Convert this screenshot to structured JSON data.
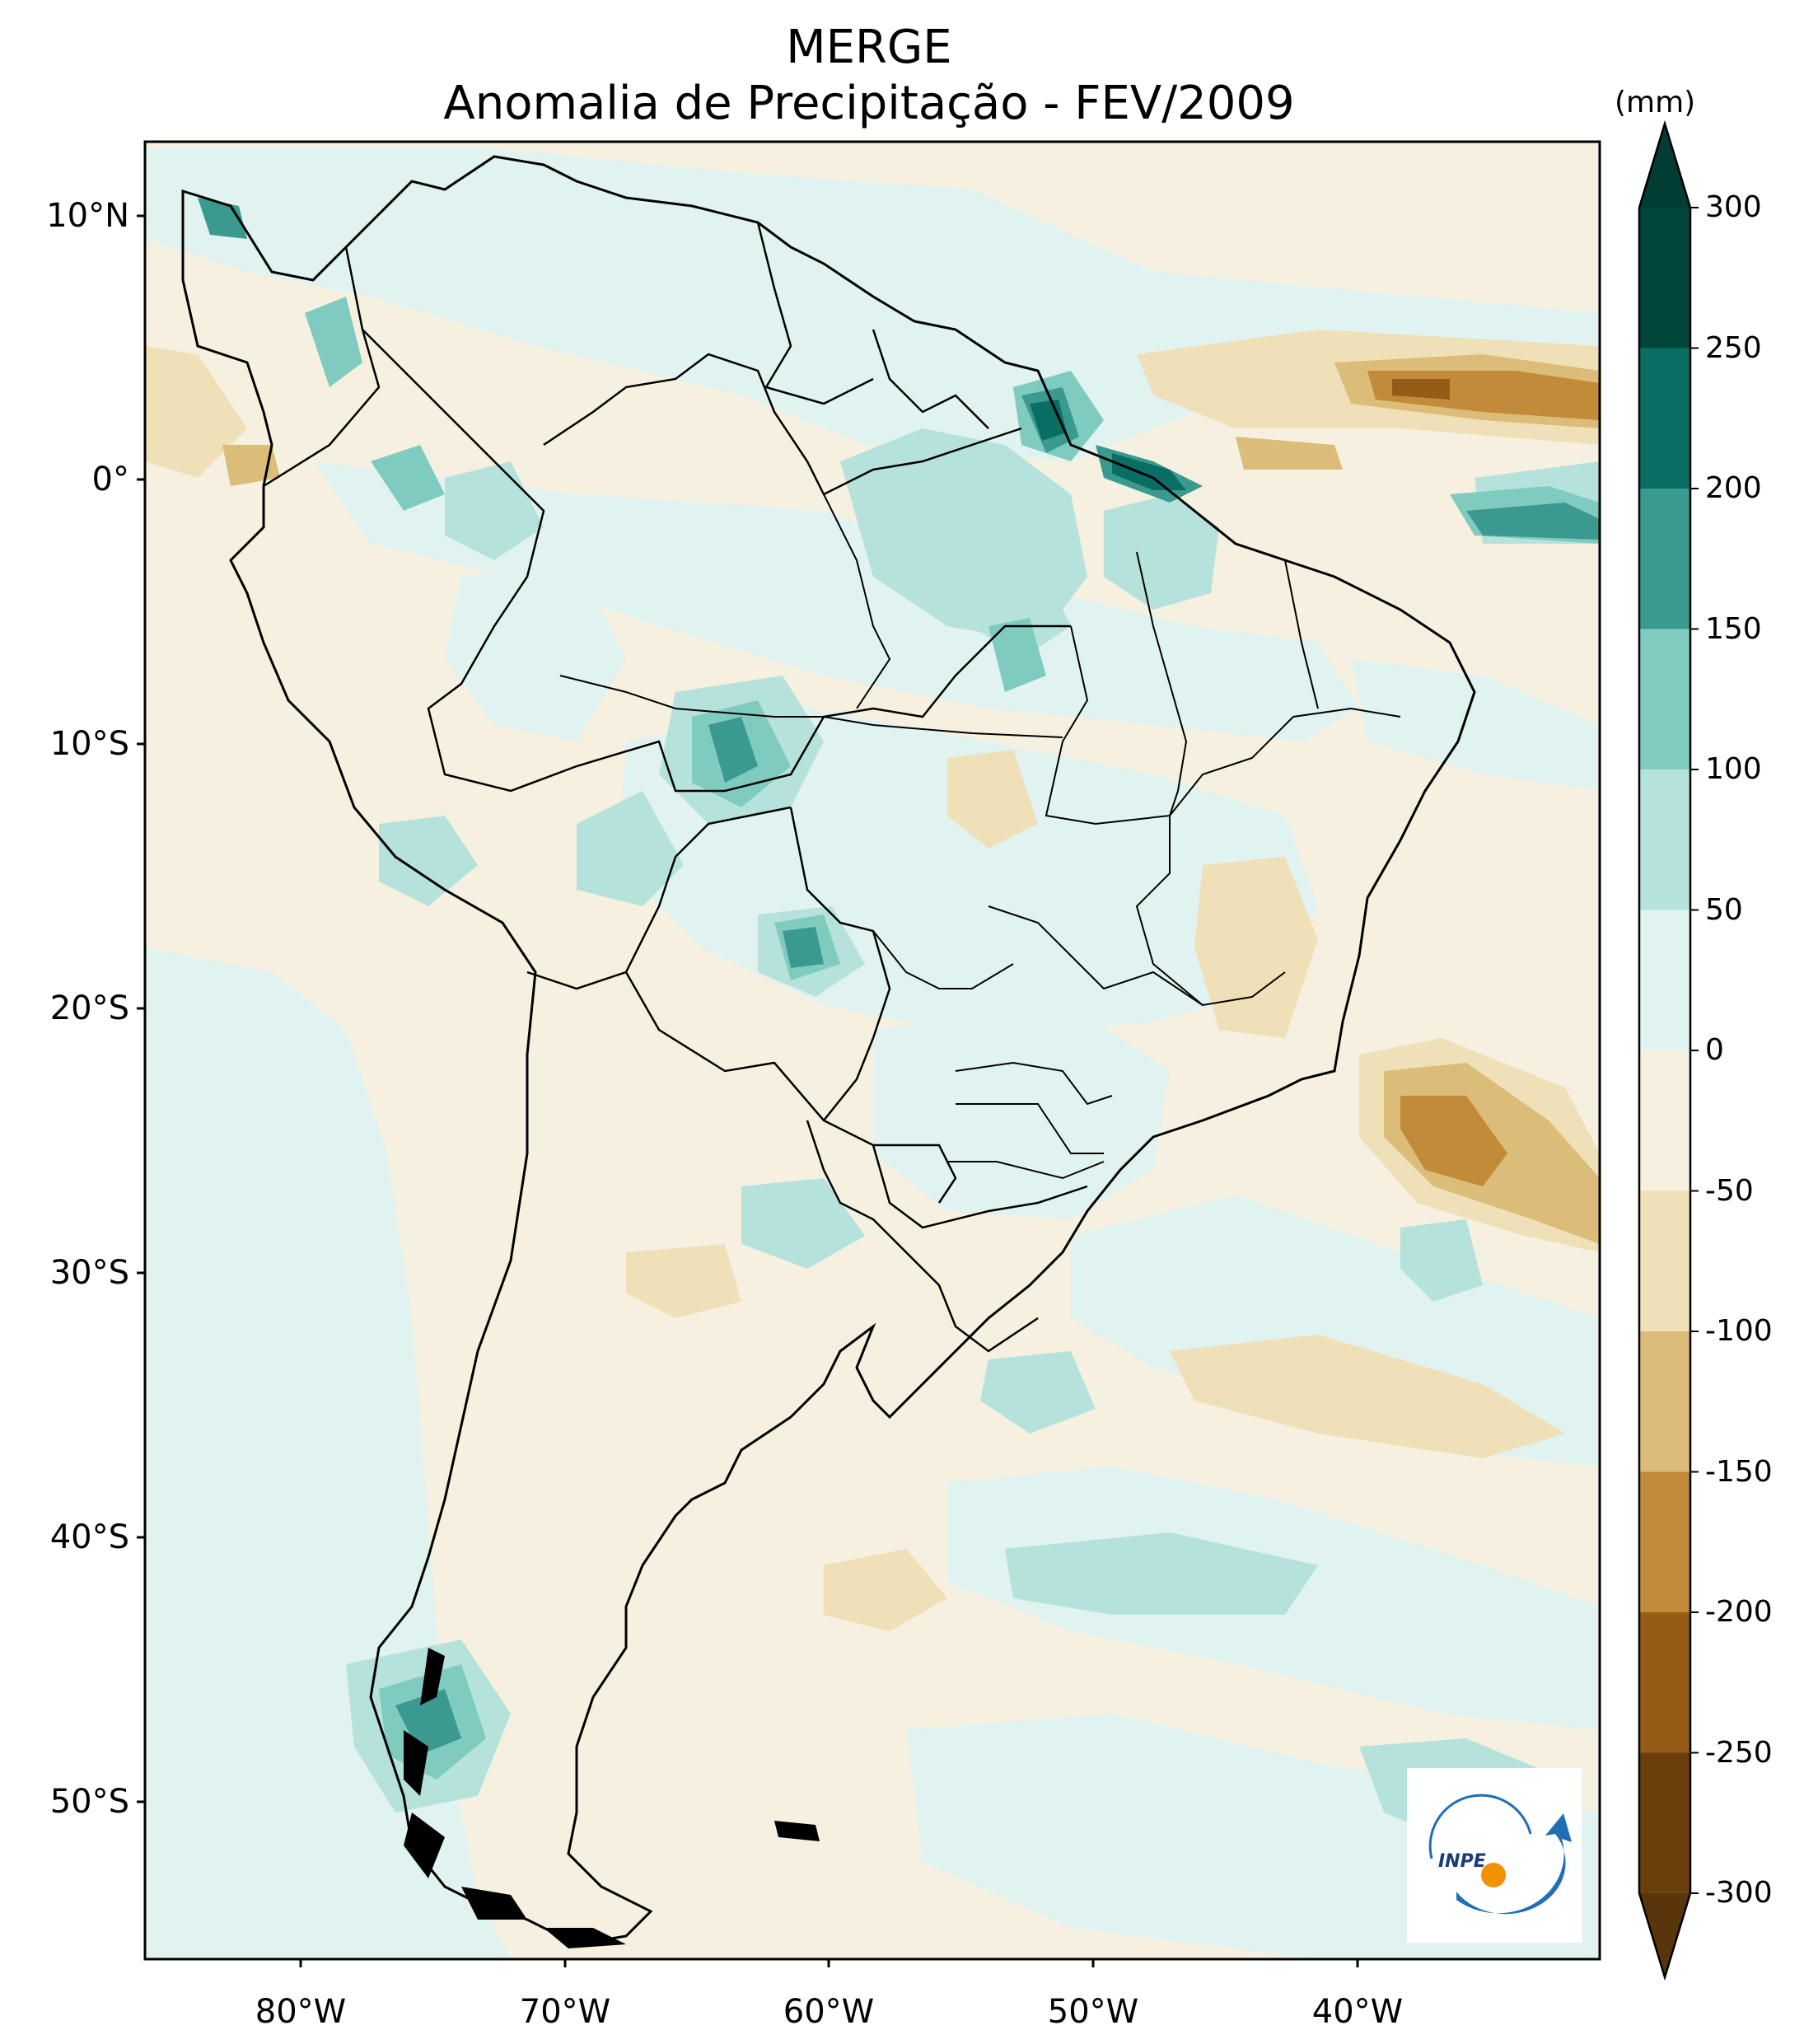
{
  "title": "MERGE",
  "subtitle": "Anomalia de Precipitação - FEV/2009",
  "colorbar": {
    "unit": "(mm)",
    "ticks": [
      "300",
      "250",
      "200",
      "150",
      "100",
      "50",
      "0",
      "-50",
      "-100",
      "-150",
      "-200",
      "-250",
      "-300"
    ],
    "colors": [
      "#01463b",
      "#0b6e65",
      "#3b9a8f",
      "#80cbc0",
      "#b6e2dc",
      "#e1f3f0",
      "#f6f0e1",
      "#f0e0b8",
      "#dcbc79",
      "#c18b3a",
      "#955c18",
      "#6a3f0c"
    ],
    "extend_colors": {
      "top": "#013d34",
      "bottom": "#5a340a"
    }
  },
  "axes": {
    "lat_labels": [
      "10°N",
      "0°",
      "10°S",
      "20°S",
      "30°S",
      "40°S",
      "50°S"
    ],
    "lon_labels": [
      "80°W",
      "70°W",
      "60°W",
      "50°W",
      "40°W"
    ]
  },
  "logo": {
    "text": "INPE",
    "icon": "inpe-logo"
  }
}
